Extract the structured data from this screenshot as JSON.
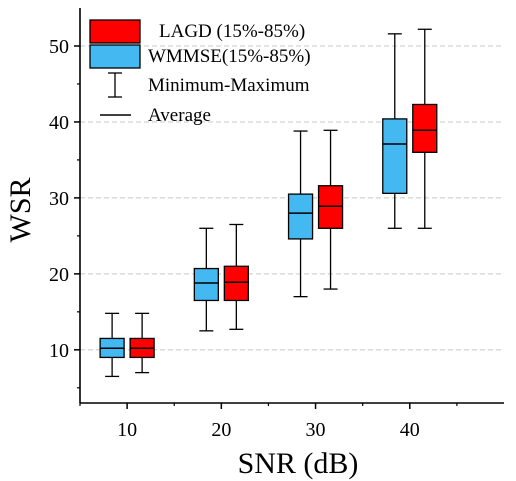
{
  "chart_data": {
    "type": "box",
    "xlabel": "SNR (dB)",
    "ylabel": "WSR",
    "categories": [
      "10",
      "20",
      "30",
      "40"
    ],
    "ylim": [
      3,
      55
    ],
    "yticks": [
      10,
      20,
      30,
      40,
      50
    ],
    "grid": "horizontal dashed",
    "legend_position": "top-left",
    "series": [
      {
        "name": "WMMSE(15%-85%)",
        "color": "#44b8f0",
        "boxes": [
          {
            "min": 6.5,
            "q_low": 9.0,
            "mean": 10.2,
            "q_high": 11.5,
            "max": 14.8
          },
          {
            "min": 12.5,
            "q_low": 16.5,
            "mean": 18.8,
            "q_high": 20.7,
            "max": 26.0
          },
          {
            "min": 17.0,
            "q_low": 24.6,
            "mean": 28.0,
            "q_high": 30.5,
            "max": 38.8
          },
          {
            "min": 26.0,
            "q_low": 30.6,
            "mean": 37.1,
            "q_high": 40.4,
            "max": 51.6
          }
        ]
      },
      {
        "name": "LAGD  (15%-85%)",
        "color": "#ff0000",
        "boxes": [
          {
            "min": 7.0,
            "q_low": 9.0,
            "mean": 10.2,
            "q_high": 11.5,
            "max": 14.8
          },
          {
            "min": 12.7,
            "q_low": 16.5,
            "mean": 18.9,
            "q_high": 21.0,
            "max": 26.5
          },
          {
            "min": 18.0,
            "q_low": 26.0,
            "mean": 28.9,
            "q_high": 31.6,
            "max": 38.9
          },
          {
            "min": 26.0,
            "q_low": 36.0,
            "mean": 38.9,
            "q_high": 42.3,
            "max": 52.2
          }
        ]
      }
    ],
    "legend": [
      {
        "label": "LAGD  (15%-85%)",
        "marker": "red-box"
      },
      {
        "label": "WMMSE(15%-85%)",
        "marker": "blue-box"
      },
      {
        "label": "Minimum-Maximum",
        "marker": "whisker"
      },
      {
        "label": "Average",
        "marker": "line"
      }
    ]
  }
}
